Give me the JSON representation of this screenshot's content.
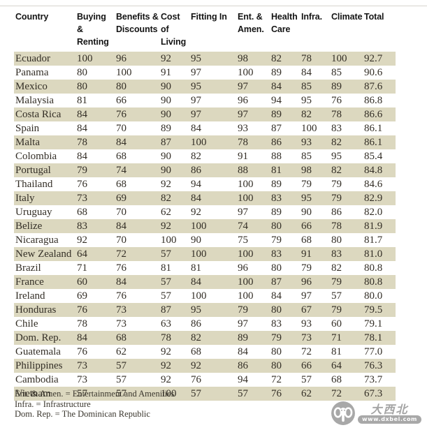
{
  "colors": {
    "row_alt_beige": "#dcd8bf",
    "body_text": "#332e26",
    "header_text": "#141414",
    "watermark_gray": "#a8a8a8"
  },
  "table": {
    "columns": [
      "Country",
      "Buying &\nRenting",
      "Benefits &\nDiscounts",
      "Cost of\nLiving",
      "Fitting In",
      "Ent. &\nAmen.",
      "Health\nCare",
      "Infra.",
      "Climate",
      "Total"
    ],
    "rows": [
      [
        "Ecuador",
        "100",
        "96",
        "92",
        "95",
        "98",
        "82",
        "78",
        "100",
        "92.7"
      ],
      [
        "Panama",
        "80",
        "100",
        "91",
        "97",
        "100",
        "89",
        "84",
        "85",
        "90.6"
      ],
      [
        "Mexico",
        "80",
        "80",
        "90",
        "95",
        "97",
        "84",
        "85",
        "89",
        "87.6"
      ],
      [
        "Malaysia",
        "81",
        "66",
        "90",
        "97",
        "96",
        "94",
        "95",
        "76",
        "86.8"
      ],
      [
        "Costa Rica",
        "84",
        "76",
        "90",
        "97",
        "97",
        "89",
        "82",
        "78",
        "86.6"
      ],
      [
        "Spain",
        "84",
        "70",
        "89",
        "84",
        "93",
        "87",
        "100",
        "83",
        "86.1"
      ],
      [
        "Malta",
        "78",
        "84",
        "87",
        "100",
        "78",
        "86",
        "93",
        "82",
        "86.1"
      ],
      [
        "Colombia",
        "84",
        "68",
        "90",
        "82",
        "91",
        "88",
        "85",
        "95",
        "85.4"
      ],
      [
        "Portugal",
        "79",
        "74",
        "90",
        "86",
        "88",
        "81",
        "98",
        "82",
        "84.8"
      ],
      [
        "Thailand",
        "76",
        "68",
        "92",
        "94",
        "100",
        "89",
        "79",
        "79",
        "84.6"
      ],
      [
        "Italy",
        "73",
        "69",
        "82",
        "84",
        "100",
        "83",
        "95",
        "79",
        "82.9"
      ],
      [
        "Uruguay",
        "68",
        "70",
        "62",
        "92",
        "97",
        "89",
        "90",
        "86",
        "82.0"
      ],
      [
        "Belize",
        "83",
        "84",
        "92",
        "100",
        "74",
        "80",
        "66",
        "78",
        "81.9"
      ],
      [
        "Nicaragua",
        "92",
        "70",
        "100",
        "90",
        "75",
        "79",
        "68",
        "80",
        "81.7"
      ],
      [
        "New Zealand",
        "64",
        "72",
        "57",
        "100",
        "100",
        "83",
        "91",
        "83",
        "81.0"
      ],
      [
        "Brazil",
        "71",
        "76",
        "81",
        "81",
        "96",
        "80",
        "79",
        "82",
        "80.8"
      ],
      [
        "France",
        "60",
        "84",
        "57",
        "84",
        "100",
        "87",
        "96",
        "79",
        "80.8"
      ],
      [
        "Ireland",
        "69",
        "76",
        "57",
        "100",
        "100",
        "84",
        "97",
        "57",
        "80.0"
      ],
      [
        "Honduras",
        "76",
        "73",
        "87",
        "95",
        "79",
        "80",
        "67",
        "79",
        "79.5"
      ],
      [
        "Chile",
        "78",
        "73",
        "63",
        "86",
        "97",
        "83",
        "93",
        "60",
        "79.1"
      ],
      [
        "Dom. Rep.",
        "84",
        "68",
        "78",
        "82",
        "89",
        "79",
        "73",
        "71",
        "78.1"
      ],
      [
        "Guatemala",
        "76",
        "62",
        "92",
        "68",
        "84",
        "80",
        "72",
        "81",
        "77.0"
      ],
      [
        "Philippines",
        "73",
        "57",
        "92",
        "92",
        "86",
        "80",
        "66",
        "64",
        "76.3"
      ],
      [
        "Cambodia",
        "73",
        "57",
        "92",
        "76",
        "94",
        "72",
        "57",
        "68",
        "73.7"
      ],
      [
        "Vietnam",
        "57",
        "57",
        "100",
        "57",
        "57",
        "76",
        "62",
        "72",
        "67.3"
      ]
    ]
  },
  "footnotes": [
    "Ent. & Amen. = Entertainment and Amenities",
    "Infra. = Infrastructure",
    "Dom. Rep. = The Dominican Republic"
  ],
  "watermark": {
    "brand": "大西北",
    "site": "www.dxbei.com"
  }
}
